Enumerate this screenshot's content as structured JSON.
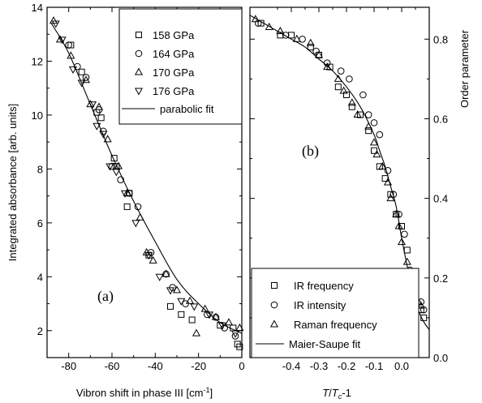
{
  "chart_data": [
    {
      "type": "scatter",
      "panel_label": "(a)",
      "xlabel_main": "Vibron shift in phase III [cm",
      "xlabel_sup": "-1",
      "xlabel_end": "]",
      "ylabel": "Integrated absorbance [arb. units]",
      "xlim": [
        -90,
        0
      ],
      "ylim": [
        1,
        14
      ],
      "xticks": [
        "-80",
        "-60",
        "-40",
        "-20",
        "0"
      ],
      "yticks": [
        "2",
        "4",
        "6",
        "8",
        "10",
        "12",
        "14"
      ],
      "legend_position": "top-right",
      "series": [
        {
          "name": "158 GPa",
          "marker": "square",
          "points": [
            [
              -79,
              12.6
            ],
            [
              -74,
              11.6
            ],
            [
              -67,
              10.1
            ],
            [
              -65,
              9.9
            ],
            [
              -59,
              8.4
            ],
            [
              -58,
              8.1
            ],
            [
              -53,
              6.6
            ],
            [
              -52,
              7.1
            ],
            [
              -43,
              4.8
            ],
            [
              -33,
              2.9
            ],
            [
              -28,
              2.6
            ],
            [
              -23,
              2.4
            ],
            [
              -10,
              2.2
            ],
            [
              -4,
              2.1
            ],
            [
              -2,
              1.5
            ],
            [
              -1,
              1.4
            ]
          ]
        },
        {
          "name": "164 GPa",
          "marker": "circle",
          "points": [
            [
              -80,
              12.6
            ],
            [
              -76,
              11.8
            ],
            [
              -72,
              11.4
            ],
            [
              -66,
              10.2
            ],
            [
              -64,
              9.4
            ],
            [
              -60,
              8.1
            ],
            [
              -56,
              7.6
            ],
            [
              -52,
              7.1
            ],
            [
              -48,
              6.6
            ],
            [
              -42,
              4.9
            ],
            [
              -35,
              4.1
            ],
            [
              -32,
              3.6
            ],
            [
              -26,
              3.0
            ],
            [
              -16,
              2.6
            ],
            [
              -12,
              2.5
            ],
            [
              -8,
              2.1
            ],
            [
              -3,
              1.8
            ]
          ]
        },
        {
          "name": "170 GPa",
          "marker": "triangle-up",
          "points": [
            [
              -87,
              13.5
            ],
            [
              -84,
              12.8
            ],
            [
              -79,
              12.2
            ],
            [
              -72,
              11.3
            ],
            [
              -70,
              10.4
            ],
            [
              -66,
              10.3
            ],
            [
              -62,
              9.1
            ],
            [
              -57,
              8.1
            ],
            [
              -53,
              7.1
            ],
            [
              -47,
              6.2
            ],
            [
              -44,
              4.9
            ],
            [
              -41,
              4.6
            ],
            [
              -35,
              4.1
            ],
            [
              -30,
              3.5
            ],
            [
              -24,
              3.1
            ],
            [
              -21,
              1.9
            ],
            [
              -17,
              2.8
            ],
            [
              -12,
              2.5
            ],
            [
              -6,
              2.3
            ],
            [
              -1,
              2.1
            ]
          ]
        },
        {
          "name": "176 GPa",
          "marker": "triangle-down",
          "points": [
            [
              -86,
              13.4
            ],
            [
              -83,
              12.8
            ],
            [
              -78,
              11.7
            ],
            [
              -74,
              11.2
            ],
            [
              -69,
              10.4
            ],
            [
              -67,
              9.6
            ],
            [
              -64,
              9.3
            ],
            [
              -61,
              8.1
            ],
            [
              -58,
              7.9
            ],
            [
              -54,
              7.1
            ],
            [
              -49,
              6.0
            ],
            [
              -43,
              4.8
            ],
            [
              -38,
              4.0
            ],
            [
              -33,
              3.5
            ],
            [
              -28,
              3.1
            ],
            [
              -22,
              2.9
            ],
            [
              -15,
              2.6
            ],
            [
              -9,
              2.2
            ],
            [
              -3,
              1.9
            ]
          ]
        }
      ],
      "fit": {
        "name": "parabolic fit",
        "points": [
          [
            -88,
            13.4
          ],
          [
            -80,
            12.3
          ],
          [
            -70,
            10.4
          ],
          [
            -60,
            8.5
          ],
          [
            -50,
            6.8
          ],
          [
            -40,
            5.3
          ],
          [
            -30,
            3.9
          ],
          [
            -20,
            3.0
          ],
          [
            -10,
            2.3
          ],
          [
            0,
            1.9
          ]
        ]
      }
    },
    {
      "type": "scatter",
      "panel_label": "(b)",
      "xlabel_T": "T",
      "xlabel_c": "c",
      "xlabel_rest": "-1",
      "ylabel": "Order parameter",
      "xlim": [
        -0.55,
        0.1
      ],
      "ylim": [
        0.0,
        0.88
      ],
      "xticks": [
        "-0.4",
        "-0.3",
        "-0.2",
        "-0.1",
        "0.0"
      ],
      "yticks": [
        "0.0",
        "0.2",
        "0.4",
        "0.6",
        "0.8"
      ],
      "legend_position": "bottom-left",
      "series": [
        {
          "name": "IR frequency",
          "marker": "square",
          "points": [
            [
              -0.51,
              0.84
            ],
            [
              -0.44,
              0.81
            ],
            [
              -0.4,
              0.81
            ],
            [
              -0.33,
              0.78
            ],
            [
              -0.3,
              0.76
            ],
            [
              -0.26,
              0.73
            ],
            [
              -0.23,
              0.68
            ],
            [
              -0.2,
              0.66
            ],
            [
              -0.18,
              0.63
            ],
            [
              -0.15,
              0.61
            ],
            [
              -0.12,
              0.57
            ],
            [
              -0.1,
              0.52
            ],
            [
              -0.08,
              0.48
            ],
            [
              -0.06,
              0.45
            ],
            [
              -0.04,
              0.41
            ],
            [
              -0.02,
              0.36
            ],
            [
              0.0,
              0.33
            ],
            [
              0.02,
              0.27
            ],
            [
              0.04,
              0.19
            ],
            [
              0.07,
              0.12
            ],
            [
              0.08,
              0.1
            ]
          ]
        },
        {
          "name": "IR intensity",
          "marker": "circle",
          "points": [
            [
              -0.52,
              0.84
            ],
            [
              -0.42,
              0.81
            ],
            [
              -0.36,
              0.8
            ],
            [
              -0.31,
              0.77
            ],
            [
              -0.27,
              0.74
            ],
            [
              -0.22,
              0.72
            ],
            [
              -0.19,
              0.7
            ],
            [
              -0.14,
              0.66
            ],
            [
              -0.12,
              0.61
            ],
            [
              -0.1,
              0.59
            ],
            [
              -0.08,
              0.56
            ],
            [
              -0.05,
              0.47
            ],
            [
              -0.03,
              0.41
            ],
            [
              -0.01,
              0.36
            ],
            [
              0.01,
              0.31
            ],
            [
              0.03,
              0.22
            ],
            [
              0.05,
              0.17
            ],
            [
              0.07,
              0.14
            ],
            [
              0.08,
              0.12
            ]
          ]
        },
        {
          "name": "Raman frequency",
          "marker": "triangle-up",
          "points": [
            [
              -0.53,
              0.85
            ],
            [
              -0.48,
              0.83
            ],
            [
              -0.44,
              0.82
            ],
            [
              -0.38,
              0.8
            ],
            [
              -0.33,
              0.79
            ],
            [
              -0.3,
              0.76
            ],
            [
              -0.27,
              0.73
            ],
            [
              -0.23,
              0.7
            ],
            [
              -0.21,
              0.67
            ],
            [
              -0.18,
              0.64
            ],
            [
              -0.16,
              0.61
            ],
            [
              -0.12,
              0.58
            ],
            [
              -0.1,
              0.54
            ],
            [
              -0.09,
              0.51
            ],
            [
              -0.07,
              0.48
            ],
            [
              -0.05,
              0.44
            ],
            [
              -0.04,
              0.4
            ],
            [
              -0.02,
              0.36
            ],
            [
              -0.01,
              0.33
            ],
            [
              0.0,
              0.29
            ],
            [
              0.02,
              0.24
            ],
            [
              0.03,
              0.2
            ],
            [
              0.05,
              0.15
            ],
            [
              0.06,
              0.14
            ],
            [
              0.07,
              0.13
            ]
          ]
        }
      ],
      "fit": {
        "name": "Maier-Saupe fit",
        "points": [
          [
            -0.55,
            0.86
          ],
          [
            -0.5,
            0.84
          ],
          [
            -0.45,
            0.82
          ],
          [
            -0.4,
            0.8
          ],
          [
            -0.35,
            0.78
          ],
          [
            -0.3,
            0.75
          ],
          [
            -0.25,
            0.72
          ],
          [
            -0.2,
            0.68
          ],
          [
            -0.15,
            0.63
          ],
          [
            -0.1,
            0.56
          ],
          [
            -0.08,
            0.52
          ],
          [
            -0.06,
            0.48
          ],
          [
            -0.04,
            0.43
          ],
          [
            -0.02,
            0.38
          ],
          [
            0.0,
            0.3
          ],
          [
            0.02,
            0.23
          ],
          [
            0.04,
            0.17
          ],
          [
            0.06,
            0.12
          ],
          [
            0.08,
            0.09
          ],
          [
            0.1,
            0.07
          ]
        ]
      }
    }
  ]
}
